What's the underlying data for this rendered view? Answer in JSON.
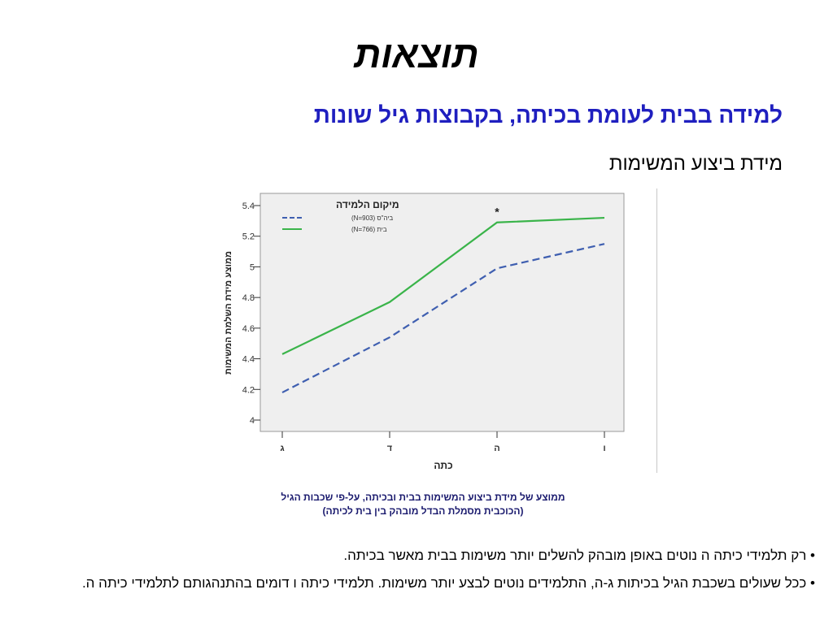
{
  "slide": {
    "title": "תוצאות",
    "subtitle": "למידה בבית לעומת בכיתה, בקבוצות גיל שונות",
    "section": "מידת ביצוע המשימות",
    "caption_line1": "ממוצע של מידת ביצוע המשימות בבית ובכיתה, על-פי שכבות הגיל",
    "caption_line2": "(הכוכבית מסמלת הבדל מובהק בין בית לכיתה)",
    "bullets": [
      "• רק תלמידי כיתה ה נוטים באופן מובהק להשלים יותר משימות בבית מאשר בכיתה.",
      "• ככל שעולים בשכבת הגיל בכיתות ג-ה, התלמידים נוטים לבצע יותר משימות. תלמידי כיתה ו דומים בהתנהגותם לתלמידי כיתה ה."
    ]
  },
  "chart_data": {
    "type": "line",
    "categories": [
      "ג",
      "ד",
      "ה",
      "ו"
    ],
    "series": [
      {
        "name": "ביה\"ס (N=903)",
        "values": [
          4.18,
          4.54,
          4.99,
          5.15
        ],
        "color": "#3f5fb0",
        "dash": true
      },
      {
        "name": "בית (N=766)",
        "values": [
          4.43,
          4.77,
          5.29,
          5.32
        ],
        "color": "#3ab44a",
        "dash": false
      }
    ],
    "legend_title": "מיקום הלמידה",
    "xlabel": "כתה",
    "ylabel": "ממוצע מידת השלמת המשימות",
    "ylim": [
      4,
      5.4
    ],
    "yticks": [
      "4",
      "4.2",
      "4.4",
      "4.6",
      "4.8",
      "5",
      "5.2",
      "5.4"
    ],
    "legend_position": "top-left",
    "annotations": [
      {
        "category": "ה",
        "text": "*"
      }
    ],
    "plot_background": "#efefef"
  }
}
